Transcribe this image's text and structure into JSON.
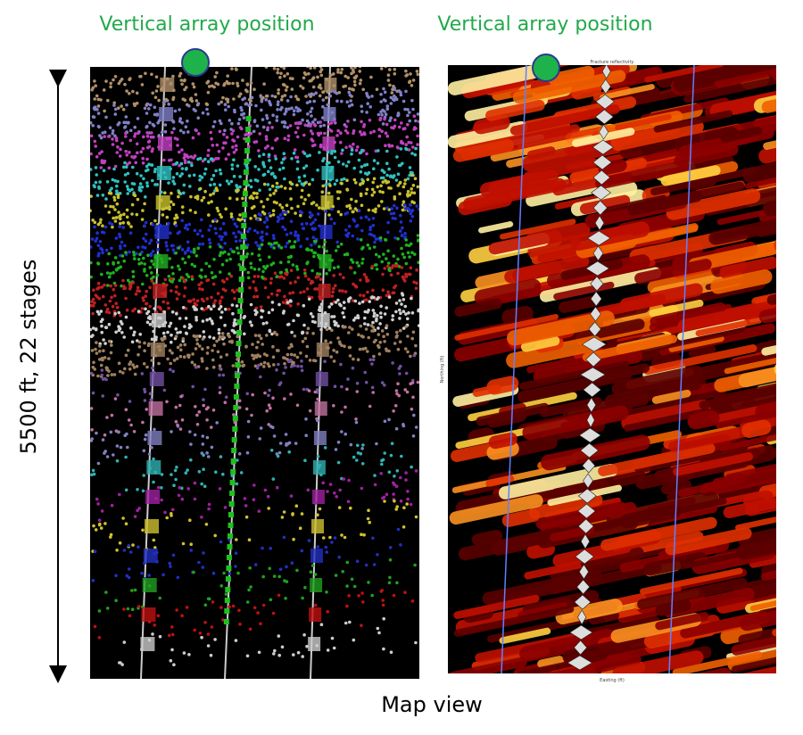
{
  "panels": [
    {
      "title": "Vertical array position"
    },
    {
      "title": "Vertical array position",
      "plot_title": "Fracture reflectivity",
      "x_axis_label": "Easting (ft)",
      "y_axis_label": "Northing (ft)"
    }
  ],
  "scale_label": "5500 ft, 22 stages",
  "caption": "Map view"
}
